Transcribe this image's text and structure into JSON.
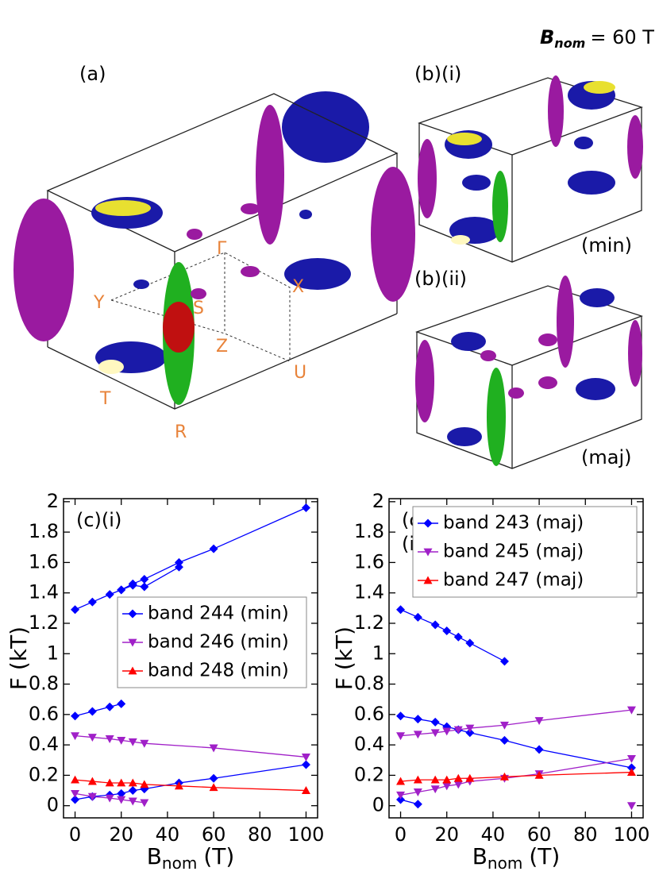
{
  "figure_label": {
    "base": "B",
    "sub": "nom",
    "rest": "= 60 T"
  },
  "panels": {
    "a": "(a)",
    "b_i": "(b)(i)",
    "b_ii": "(b)(ii)",
    "min": "(min)",
    "maj": "(maj)"
  },
  "points": [
    "Γ",
    "X",
    "Y",
    "S",
    "Z",
    "U",
    "T",
    "R"
  ],
  "chart_data": [
    {
      "type": "line",
      "panel_label": [
        "(c)(i)"
      ],
      "ylabel": "F (kT)",
      "xlabel": {
        "base": "B",
        "sub": "nom",
        "rest": "(T)"
      },
      "xlim": [
        -5,
        105
      ],
      "ylim": [
        -0.08,
        2.02
      ],
      "xticks": [
        0,
        20,
        40,
        60,
        80,
        100
      ],
      "yticks": [
        0,
        0.2,
        0.4,
        0.6,
        0.8,
        1,
        1.2,
        1.4,
        1.6,
        1.8,
        2
      ],
      "legend_loc": "center right",
      "series": [
        {
          "name": "band 244 (min)",
          "color": "#0000ff",
          "marker": "diamond",
          "branches": [
            {
              "x": [
                0,
                7.5,
                15,
                20,
                25,
                30,
                45,
                60,
                100
              ],
              "values": [
                1.29,
                1.34,
                1.39,
                1.42,
                1.46,
                1.49,
                1.6,
                1.69,
                1.96
              ]
            },
            {
              "x": [
                20,
                25,
                30,
                45
              ],
              "values": [
                1.42,
                1.45,
                1.44,
                1.57
              ]
            },
            {
              "x": [
                0,
                7.5,
                15,
                20
              ],
              "values": [
                0.59,
                0.62,
                0.65,
                0.67
              ]
            },
            {
              "x": [
                0,
                7.5,
                15,
                20,
                25,
                30,
                45,
                60,
                100
              ],
              "values": [
                0.04,
                0.06,
                0.07,
                0.08,
                0.1,
                0.11,
                0.15,
                0.18,
                0.27
              ]
            }
          ]
        },
        {
          "name": "band 246 (min)",
          "color": "#a020c8",
          "marker": "down",
          "branches": [
            {
              "x": [
                0,
                7.5,
                15,
                20,
                25,
                30,
                60,
                100
              ],
              "values": [
                0.46,
                0.45,
                0.44,
                0.43,
                0.42,
                0.41,
                0.38,
                0.32
              ]
            },
            {
              "x": [
                0,
                7.5,
                15,
                20,
                25,
                30
              ],
              "values": [
                0.08,
                0.06,
                0.05,
                0.04,
                0.03,
                0.02
              ]
            }
          ]
        },
        {
          "name": "band 248 (min)",
          "color": "#ff0000",
          "marker": "up",
          "branches": [
            {
              "x": [
                0,
                7.5,
                15,
                20,
                25,
                30,
                45,
                60,
                100
              ],
              "values": [
                0.17,
                0.16,
                0.15,
                0.15,
                0.15,
                0.14,
                0.13,
                0.12,
                0.1
              ]
            }
          ]
        }
      ]
    },
    {
      "type": "line",
      "panel_label": [
        "(c)",
        "(ii)"
      ],
      "ylabel": "F (kT)",
      "xlabel": {
        "base": "B",
        "sub": "nom",
        "rest": "(T)"
      },
      "xlim": [
        -5,
        105
      ],
      "ylim": [
        -0.08,
        2.02
      ],
      "xticks": [
        0,
        20,
        40,
        60,
        80,
        100
      ],
      "yticks": [
        0,
        0.2,
        0.4,
        0.6,
        0.8,
        1,
        1.2,
        1.4,
        1.6,
        1.8,
        2
      ],
      "legend_loc": "upper right",
      "series": [
        {
          "name": "band 243 (maj)",
          "color": "#0000ff",
          "marker": "diamond",
          "branches": [
            {
              "x": [
                0,
                7.5,
                15,
                20,
                25,
                30,
                45
              ],
              "values": [
                1.29,
                1.24,
                1.19,
                1.15,
                1.11,
                1.07,
                0.95
              ]
            },
            {
              "x": [
                0,
                7.5,
                15,
                20,
                25,
                30,
                45,
                60,
                100
              ],
              "values": [
                0.59,
                0.57,
                0.55,
                0.52,
                0.5,
                0.48,
                0.43,
                0.37,
                0.25
              ]
            },
            {
              "x": [
                0,
                7.5
              ],
              "values": [
                0.04,
                0.01
              ]
            }
          ]
        },
        {
          "name": "band 245 (maj)",
          "color": "#a020c8",
          "marker": "down",
          "branches": [
            {
              "x": [
                0,
                7.5,
                15,
                20,
                25,
                30,
                45,
                60,
                100
              ],
              "values": [
                0.46,
                0.47,
                0.48,
                0.49,
                0.5,
                0.51,
                0.53,
                0.56,
                0.63
              ]
            },
            {
              "x": [
                0,
                7.5,
                15,
                20,
                25,
                30,
                45,
                60,
                100
              ],
              "values": [
                0.07,
                0.09,
                0.11,
                0.13,
                0.14,
                0.16,
                0.18,
                0.21,
                0.31
              ]
            },
            {
              "x": [
                100
              ],
              "values": [
                0
              ]
            }
          ]
        },
        {
          "name": "band 247 (maj)",
          "color": "#ff0000",
          "marker": "up",
          "branches": [
            {
              "x": [
                0,
                7.5,
                15,
                20,
                25,
                30,
                45,
                60,
                100
              ],
              "values": [
                0.16,
                0.17,
                0.17,
                0.17,
                0.18,
                0.18,
                0.19,
                0.2,
                0.22
              ]
            }
          ]
        }
      ]
    }
  ]
}
